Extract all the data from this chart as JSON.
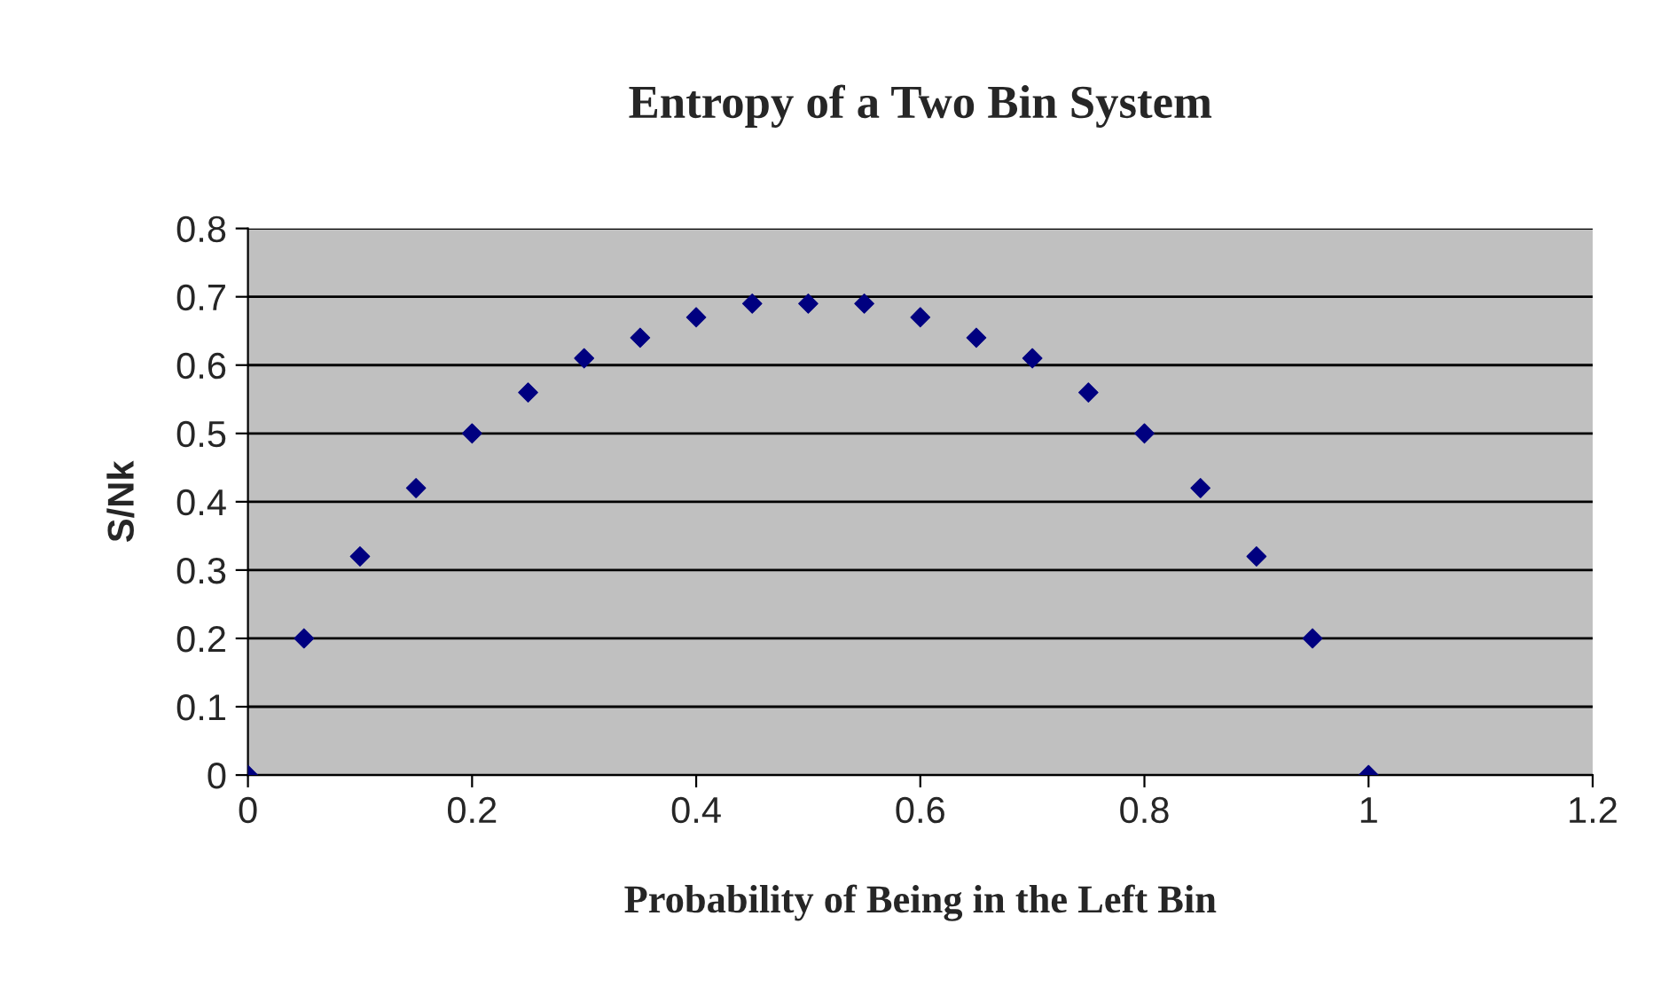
{
  "chart_data": {
    "type": "scatter",
    "title": "Entropy of a Two Bin System",
    "xlabel": "Probability of Being in the Left Bin",
    "ylabel": "S/Nk",
    "x": [
      0,
      0.05,
      0.1,
      0.15,
      0.2,
      0.25,
      0.3,
      0.35,
      0.4,
      0.45,
      0.5,
      0.55,
      0.6,
      0.65,
      0.7,
      0.75,
      0.8,
      0.85,
      0.9,
      0.95,
      1
    ],
    "series": [
      {
        "color": "#000080",
        "values": [
          0,
          0.2,
          0.32,
          0.42,
          0.5,
          0.56,
          0.61,
          0.64,
          0.67,
          0.69,
          0.69,
          0.69,
          0.67,
          0.64,
          0.61,
          0.56,
          0.5,
          0.42,
          0.32,
          0.2,
          0
        ]
      }
    ],
    "xlim": [
      0,
      1.2
    ],
    "xticks": [
      0,
      0.2,
      0.4,
      0.6,
      0.8,
      1,
      1.2
    ],
    "ylim": [
      0,
      0.8
    ],
    "yticks": [
      0,
      0.1,
      0.2,
      0.3,
      0.4,
      0.5,
      0.6,
      0.7,
      0.8
    ],
    "grid": "y",
    "marker": "diamond"
  }
}
